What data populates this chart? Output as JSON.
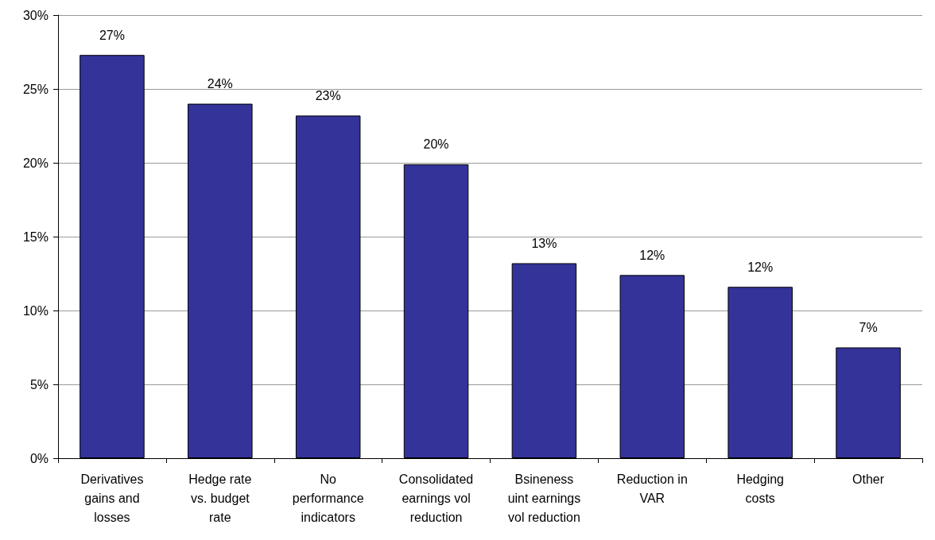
{
  "chart_data": {
    "type": "bar",
    "categories": [
      "Derivatives\ngains and\nlosses",
      "Hedge rate\nvs. budget\nrate",
      "No\nperformance\nindicators",
      "Consolidated\nearnings vol\nreduction",
      "Bsineness\nuint earnings\nvol reduction",
      "Reduction in\nVAR",
      "Hedging\ncosts",
      "Other"
    ],
    "values": [
      27.3,
      24.0,
      23.2,
      19.9,
      13.2,
      12.4,
      11.6,
      7.5
    ],
    "value_labels": [
      "27%",
      "24%",
      "23%",
      "20%",
      "13%",
      "12%",
      "12%",
      "7%"
    ],
    "color": "#333399",
    "ylim": [
      0,
      30
    ],
    "yticks": [
      {
        "value": 0,
        "label": "0%"
      },
      {
        "value": 5,
        "label": "5%"
      },
      {
        "value": 10,
        "label": "10%"
      },
      {
        "value": 15,
        "label": "15%"
      },
      {
        "value": 20,
        "label": "20%"
      },
      {
        "value": 25,
        "label": "25%"
      },
      {
        "value": 30,
        "label": "30%"
      }
    ],
    "grid": "y"
  }
}
